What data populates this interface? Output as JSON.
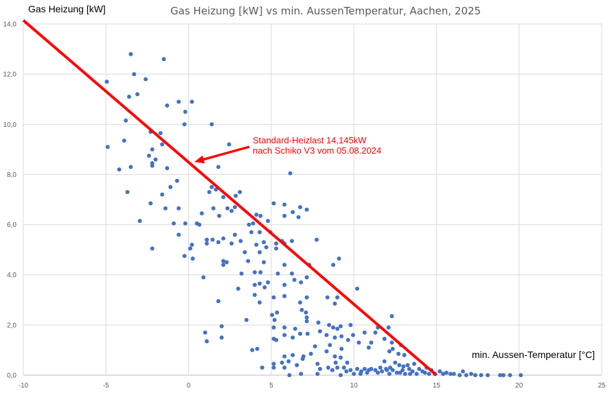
{
  "chart_data": {
    "type": "scatter",
    "title": "Gas Heizung [kW] vs min. AussenTemperatur, Aachen, 2025",
    "ylabel": "Gas Heizung [kW]",
    "xlabel": "min. Aussen-Temperatur [°C]",
    "xlim": [
      -10,
      25
    ],
    "ylim": [
      0,
      14
    ],
    "x_ticks": [
      -10,
      -5,
      0,
      5,
      10,
      15,
      20,
      25
    ],
    "x_tick_labels": [
      "-10",
      "-5",
      "0",
      "5",
      "10",
      "15",
      "20",
      "25"
    ],
    "y_ticks": [
      0,
      2,
      4,
      6,
      8,
      10,
      12,
      14
    ],
    "y_tick_labels": [
      "0,0",
      "2,0",
      "4,0",
      "6,0",
      "8,0",
      "10,0",
      "12,0",
      "14,0"
    ],
    "grid": true,
    "colors": {
      "points": "#4472c4",
      "line": "#ff0000",
      "grid": "#d9d9d9"
    },
    "reference_line": {
      "name": "Standard-Heizlast",
      "points": [
        [
          -10,
          14.145
        ],
        [
          15,
          0
        ]
      ]
    },
    "annotation": {
      "lines": [
        "Standard-Heizlast 14,145kW",
        "nach Schiko V3 vom 05.08.2024"
      ],
      "target": [
        0.35,
        8.5
      ]
    },
    "series": [
      {
        "name": "Gas Heizung",
        "points": [
          [
            -4.95,
            11.7
          ],
          [
            -4.9,
            9.1
          ],
          [
            -3.5,
            12.8
          ],
          [
            -3.3,
            12.0
          ],
          [
            -3.6,
            11.1
          ],
          [
            -3.1,
            11.2
          ],
          [
            -2.6,
            11.8
          ],
          [
            -1.5,
            12.6
          ],
          [
            -0.6,
            10.9
          ],
          [
            0.2,
            10.9
          ],
          [
            -1.3,
            10.75
          ],
          [
            -0.2,
            10.5
          ],
          [
            -0.25,
            10.0
          ],
          [
            1.4,
            10.0
          ],
          [
            2.45,
            9.2
          ],
          [
            -3.8,
            10.15
          ],
          [
            -3.9,
            9.35
          ],
          [
            -2.3,
            9.7
          ],
          [
            -1.7,
            9.65
          ],
          [
            -2.2,
            9.0
          ],
          [
            -1.6,
            9.2
          ],
          [
            -4.2,
            8.2
          ],
          [
            -3.5,
            8.3
          ],
          [
            -2.4,
            8.75
          ],
          [
            -2.0,
            8.6
          ],
          [
            -2.2,
            8.35
          ],
          [
            -2.2,
            8.45
          ],
          [
            -1.3,
            8.25
          ],
          [
            -3.7,
            7.3
          ],
          [
            -1.1,
            7.5
          ],
          [
            -0.7,
            7.75
          ],
          [
            -1.6,
            7.2
          ],
          [
            -2.95,
            6.15
          ],
          [
            -2.3,
            6.85
          ],
          [
            -1.4,
            6.65
          ],
          [
            -0.6,
            6.65
          ],
          [
            -0.9,
            6.05
          ],
          [
            -0.2,
            6.05
          ],
          [
            0.5,
            6.05
          ],
          [
            0.65,
            6.0
          ],
          [
            -0.6,
            5.6
          ],
          [
            -2.2,
            5.05
          ],
          [
            0.2,
            5.2
          ],
          [
            0.1,
            5.05
          ],
          [
            -0.25,
            4.75
          ],
          [
            0.25,
            4.65
          ],
          [
            0.9,
            3.9
          ],
          [
            1.0,
            1.7
          ],
          [
            1.1,
            1.35
          ],
          [
            1.8,
            8.3
          ],
          [
            1.4,
            7.5
          ],
          [
            1.65,
            7.4
          ],
          [
            1.25,
            7.3
          ],
          [
            2.1,
            7.1
          ],
          [
            3.1,
            7.3
          ],
          [
            2.85,
            7.15
          ],
          [
            2.35,
            6.65
          ],
          [
            2.8,
            6.7
          ],
          [
            2.6,
            6.55
          ],
          [
            1.5,
            6.65
          ],
          [
            1.85,
            6.35
          ],
          [
            0.8,
            6.45
          ],
          [
            1.1,
            5.4
          ],
          [
            1.1,
            5.25
          ],
          [
            1.45,
            5.4
          ],
          [
            1.8,
            5.3
          ],
          [
            2.1,
            5.45
          ],
          [
            2.6,
            5.25
          ],
          [
            2.8,
            5.6
          ],
          [
            3.15,
            5.35
          ],
          [
            3.8,
            5.7
          ],
          [
            3.65,
            6.0
          ],
          [
            3.9,
            6.05
          ],
          [
            4.1,
            6.4
          ],
          [
            4.35,
            6.35
          ],
          [
            4.8,
            6.15
          ],
          [
            4.3,
            5.7
          ],
          [
            4.1,
            5.2
          ],
          [
            4.55,
            5.3
          ],
          [
            4.7,
            5.1
          ],
          [
            4.3,
            4.9
          ],
          [
            3.4,
            4.9
          ],
          [
            3.6,
            4.55
          ],
          [
            2.3,
            4.5
          ],
          [
            2.1,
            4.4
          ],
          [
            2.1,
            4.55
          ],
          [
            3.2,
            4.05
          ],
          [
            3.0,
            3.45
          ],
          [
            4.0,
            4.1
          ],
          [
            4.35,
            4.1
          ],
          [
            4.55,
            4.5
          ],
          [
            4.0,
            3.6
          ],
          [
            4.3,
            3.65
          ],
          [
            4.6,
            3.5
          ],
          [
            4.8,
            3.7
          ],
          [
            4.0,
            3.2
          ],
          [
            4.3,
            2.9
          ],
          [
            1.8,
            2.95
          ],
          [
            2.0,
            1.95
          ],
          [
            2.0,
            1.5
          ],
          [
            3.5,
            2.2
          ],
          [
            3.85,
            1.0
          ],
          [
            4.15,
            1.05
          ],
          [
            4.45,
            0.3
          ],
          [
            5.15,
            6.85
          ],
          [
            5.8,
            6.8
          ],
          [
            6.75,
            6.7
          ],
          [
            7.15,
            6.6
          ],
          [
            6.15,
            8.05
          ],
          [
            5.8,
            6.35
          ],
          [
            6.3,
            6.5
          ],
          [
            6.65,
            6.3
          ],
          [
            4.95,
            5.7
          ],
          [
            5.65,
            5.35
          ],
          [
            5.3,
            5.05
          ],
          [
            5.8,
            5.25
          ],
          [
            6.25,
            5.35
          ],
          [
            5.3,
            5.25
          ],
          [
            5.8,
            4.4
          ],
          [
            5.4,
            4.05
          ],
          [
            6.25,
            4.05
          ],
          [
            6.4,
            3.8
          ],
          [
            6.8,
            3.7
          ],
          [
            7.15,
            3.9
          ],
          [
            5.8,
            3.6
          ],
          [
            5.15,
            3.1
          ],
          [
            5.8,
            3.15
          ],
          [
            6.75,
            2.9
          ],
          [
            6.85,
            2.6
          ],
          [
            7.15,
            3.1
          ],
          [
            7.1,
            2.5
          ],
          [
            7.15,
            2.3
          ],
          [
            7.15,
            2.15
          ],
          [
            5.35,
            2.5
          ],
          [
            5.05,
            2.4
          ],
          [
            5.2,
            2.2
          ],
          [
            5.15,
            1.9
          ],
          [
            5.15,
            1.45
          ],
          [
            5.3,
            1.4
          ],
          [
            5.8,
            1.6
          ],
          [
            5.8,
            1.9
          ],
          [
            6.45,
            1.85
          ],
          [
            6.3,
            1.5
          ],
          [
            6.75,
            1.65
          ],
          [
            7.2,
            1.65
          ],
          [
            7.85,
            2.1
          ],
          [
            7.95,
            1.75
          ],
          [
            8.85,
            2.85
          ],
          [
            8.4,
            3.1
          ],
          [
            9.0,
            3.1
          ],
          [
            7.75,
            5.4
          ],
          [
            8.75,
            4.4
          ],
          [
            9.1,
            4.65
          ],
          [
            7.3,
            4.4
          ],
          [
            10.2,
            3.45
          ],
          [
            12.3,
            2.35
          ],
          [
            8.5,
            2.0
          ],
          [
            8.75,
            1.9
          ],
          [
            9.0,
            1.85
          ],
          [
            9.2,
            1.95
          ],
          [
            8.35,
            1.6
          ],
          [
            8.85,
            1.5
          ],
          [
            9.25,
            1.55
          ],
          [
            9.8,
            2.0
          ],
          [
            9.95,
            1.6
          ],
          [
            9.65,
            1.4
          ],
          [
            10.3,
            1.3
          ],
          [
            10.65,
            1.7
          ],
          [
            11.3,
            1.7
          ],
          [
            11.45,
            1.9
          ],
          [
            11.05,
            1.3
          ],
          [
            10.9,
            1.1
          ],
          [
            11.85,
            1.45
          ],
          [
            12.1,
            1.9
          ],
          [
            12.3,
            1.3
          ],
          [
            12.35,
            1.05
          ],
          [
            12.7,
            0.85
          ],
          [
            12.85,
            1.2
          ],
          [
            12.15,
            0.95
          ],
          [
            13.05,
            0.8
          ],
          [
            7.65,
            1.15
          ],
          [
            6.95,
            0.75
          ],
          [
            7.8,
            0.45
          ],
          [
            8.35,
            0.95
          ],
          [
            8.55,
            1.2
          ],
          [
            9.25,
            1.05
          ],
          [
            9.6,
            0.5
          ],
          [
            9.2,
            0.7
          ],
          [
            8.85,
            0.75
          ],
          [
            8.9,
            0.5
          ],
          [
            6.05,
            0.55
          ],
          [
            6.3,
            0.8
          ],
          [
            5.8,
            0.75
          ],
          [
            5.65,
            0.5
          ],
          [
            5.15,
            0.45
          ],
          [
            5.15,
            0.3
          ],
          [
            6.1,
            0.0
          ],
          [
            6.8,
            0.05
          ],
          [
            6.9,
            0.65
          ],
          [
            7.4,
            0.85
          ],
          [
            5.8,
            0.3
          ],
          [
            6.55,
            0.4
          ],
          [
            7.95,
            0.25
          ],
          [
            7.8,
            0.05
          ],
          [
            8.45,
            0.3
          ],
          [
            8.7,
            0.2
          ],
          [
            9.0,
            0.3
          ],
          [
            9.4,
            0.3
          ],
          [
            9.55,
            0.15
          ],
          [
            9.8,
            0.2
          ],
          [
            10.0,
            0.05
          ],
          [
            10.2,
            0.25
          ],
          [
            10.45,
            0.15
          ],
          [
            10.65,
            0.25
          ],
          [
            10.8,
            0.1
          ],
          [
            11.05,
            0.25
          ],
          [
            11.3,
            0.2
          ],
          [
            11.45,
            0.1
          ],
          [
            11.7,
            0.15
          ],
          [
            11.95,
            0.25
          ],
          [
            12.15,
            0.05
          ],
          [
            12.35,
            0.2
          ],
          [
            12.6,
            0.1
          ],
          [
            12.75,
            0.4
          ],
          [
            12.95,
            0.2
          ],
          [
            13.1,
            0.05
          ],
          [
            13.35,
            0.25
          ],
          [
            13.55,
            0.15
          ],
          [
            13.8,
            0.05
          ],
          [
            13.95,
            0.25
          ],
          [
            14.15,
            0.15
          ],
          [
            14.4,
            0.3
          ],
          [
            14.55,
            0.05
          ],
          [
            14.7,
            0.2
          ],
          [
            14.9,
            0.05
          ],
          [
            15.2,
            0.15
          ],
          [
            15.4,
            0.05
          ],
          [
            15.6,
            0.1
          ],
          [
            15.85,
            0.05
          ],
          [
            16.05,
            0.05
          ],
          [
            16.4,
            0.0
          ],
          [
            16.6,
            0.15
          ],
          [
            16.8,
            0.0
          ],
          [
            17.1,
            0.05
          ],
          [
            17.35,
            0.0
          ],
          [
            17.7,
            0.0
          ],
          [
            18.1,
            0.0
          ],
          [
            18.85,
            0.0
          ],
          [
            19.05,
            0.0
          ],
          [
            19.45,
            0.0
          ],
          [
            20.1,
            0.0
          ],
          [
            11.85,
            0.55
          ],
          [
            12.5,
            0.5
          ],
          [
            13.25,
            0.4
          ],
          [
            13.65,
            0.45
          ],
          [
            12.0,
            0.2
          ],
          [
            12.2,
            0.3
          ],
          [
            13.0,
            0.35
          ],
          [
            10.9,
            0.2
          ],
          [
            11.6,
            0.3
          ],
          [
            14.3,
            0.1
          ],
          [
            13.4,
            0.05
          ],
          [
            10.4,
            0.05
          ],
          [
            9.2,
            0.0
          ],
          [
            12.8,
            0.1
          ]
        ]
      }
    ]
  }
}
